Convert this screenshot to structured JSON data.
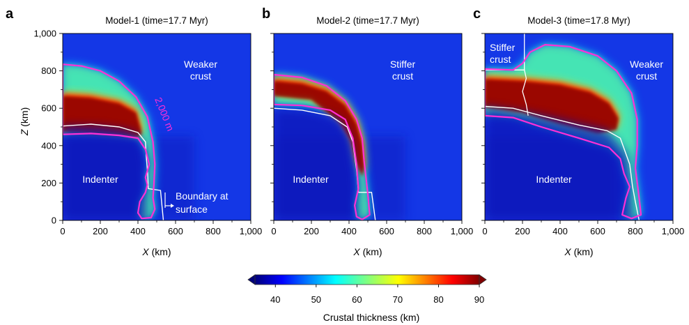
{
  "colors": {
    "background_field": "#1437e6",
    "contour_2000m": "#ff2fd6",
    "boundary_line": "#ffffff"
  },
  "chart_data": [
    {
      "type": "heatmap",
      "panel": "a",
      "title": "Model-1 (time=17.7 Myr)",
      "xlabel_var": "X",
      "xlabel_unit": "(km)",
      "ylabel_var": "Z",
      "ylabel_unit": "(km)",
      "xlim": [
        0,
        1000
      ],
      "ylim": [
        0,
        1000
      ],
      "xticks": [
        "0",
        "200",
        "400",
        "600",
        "800",
        "1,000"
      ],
      "yticks": [
        "0",
        "200",
        "400",
        "600",
        "800",
        "1,000"
      ],
      "annotations": [
        "Weaker",
        "crust",
        "Indenter",
        "Boundary at",
        "surface",
        "2,000 m"
      ],
      "contour_2000m": [
        [
          0,
          835
        ],
        [
          100,
          826
        ],
        [
          200,
          800
        ],
        [
          300,
          745
        ],
        [
          390,
          660
        ],
        [
          450,
          555
        ],
        [
          480,
          420
        ],
        [
          490,
          300
        ],
        [
          485,
          190
        ],
        [
          480,
          120
        ],
        [
          490,
          60
        ],
        [
          470,
          15
        ],
        [
          420,
          10
        ],
        [
          400,
          40
        ],
        [
          410,
          100
        ],
        [
          440,
          150
        ],
        [
          450,
          190
        ],
        [
          440,
          230
        ],
        [
          460,
          300
        ],
        [
          440,
          380
        ],
        [
          400,
          440
        ],
        [
          300,
          455
        ],
        [
          150,
          465
        ],
        [
          0,
          460
        ]
      ],
      "contour_label_pos": [
        [
          545,
          628
        ]
      ],
      "boundary_line": [
        [
          0,
          505
        ],
        [
          150,
          515
        ],
        [
          300,
          500
        ],
        [
          400,
          470
        ],
        [
          440,
          420
        ],
        [
          445,
          330
        ],
        [
          452,
          250
        ],
        [
          455,
          170
        ],
        [
          520,
          160
        ],
        [
          535,
          0
        ]
      ],
      "indenter_top": [
        [
          0,
          505
        ],
        [
          200,
          500
        ],
        [
          350,
          480
        ],
        [
          420,
          440
        ],
        [
          440,
          330
        ],
        [
          445,
          0
        ]
      ],
      "hot_core": [
        [
          0,
          680
        ],
        [
          150,
          670
        ],
        [
          300,
          640
        ],
        [
          390,
          590
        ],
        [
          420,
          480
        ],
        [
          400,
          460
        ],
        [
          300,
          470
        ],
        [
          150,
          480
        ],
        [
          0,
          490
        ]
      ]
    },
    {
      "type": "heatmap",
      "panel": "b",
      "title": "Model-2 (time=17.7 Myr)",
      "xlabel_var": "X",
      "xlabel_unit": "(km)",
      "xlim": [
        0,
        1000
      ],
      "ylim": [
        0,
        1000
      ],
      "xticks": [
        "0",
        "200",
        "400",
        "600",
        "800",
        "1,000"
      ],
      "annotations": [
        "Stiffer",
        "crust",
        "Indenter"
      ],
      "contour_2000m": [
        [
          0,
          780
        ],
        [
          150,
          765
        ],
        [
          280,
          720
        ],
        [
          380,
          640
        ],
        [
          440,
          540
        ],
        [
          470,
          440
        ],
        [
          480,
          320
        ],
        [
          500,
          140
        ],
        [
          510,
          30
        ],
        [
          470,
          5
        ],
        [
          440,
          20
        ],
        [
          430,
          80
        ],
        [
          450,
          170
        ],
        [
          440,
          300
        ],
        [
          420,
          440
        ],
        [
          380,
          540
        ],
        [
          300,
          590
        ],
        [
          150,
          615
        ],
        [
          0,
          620
        ]
      ],
      "boundary_line": [
        [
          0,
          600
        ],
        [
          150,
          590
        ],
        [
          300,
          560
        ],
        [
          390,
          500
        ],
        [
          420,
          420
        ],
        [
          440,
          270
        ],
        [
          450,
          150
        ],
        [
          520,
          150
        ],
        [
          540,
          0
        ]
      ],
      "indenter_top": [
        [
          0,
          600
        ],
        [
          200,
          590
        ],
        [
          350,
          540
        ],
        [
          410,
          440
        ],
        [
          440,
          200
        ],
        [
          450,
          0
        ]
      ],
      "hot_core": [
        [
          0,
          760
        ],
        [
          150,
          745
        ],
        [
          280,
          705
        ],
        [
          380,
          630
        ],
        [
          440,
          530
        ],
        [
          470,
          420
        ],
        [
          480,
          300
        ],
        [
          470,
          250
        ],
        [
          440,
          320
        ],
        [
          410,
          440
        ],
        [
          350,
          540
        ],
        [
          200,
          660
        ],
        [
          0,
          680
        ]
      ]
    },
    {
      "type": "heatmap",
      "panel": "c",
      "title": "Model-3 (time=17.8 Myr)",
      "xlabel_var": "X",
      "xlabel_unit": "(km)",
      "xlim": [
        0,
        1000
      ],
      "ylim": [
        0,
        1000
      ],
      "xticks": [
        "0",
        "200",
        "400",
        "600",
        "800",
        "1,000"
      ],
      "annotations": [
        "Stiffer",
        "crust",
        "Weaker",
        "crust",
        "Indenter"
      ],
      "contour_2000m": [
        [
          0,
          810
        ],
        [
          150,
          805
        ],
        [
          200,
          840
        ],
        [
          240,
          900
        ],
        [
          320,
          940
        ],
        [
          450,
          930
        ],
        [
          600,
          880
        ],
        [
          700,
          800
        ],
        [
          780,
          680
        ],
        [
          810,
          540
        ],
        [
          810,
          400
        ],
        [
          800,
          280
        ],
        [
          820,
          120
        ],
        [
          830,
          30
        ],
        [
          780,
          10
        ],
        [
          730,
          30
        ],
        [
          750,
          120
        ],
        [
          770,
          180
        ],
        [
          740,
          250
        ],
        [
          720,
          330
        ],
        [
          660,
          390
        ],
        [
          500,
          440
        ],
        [
          300,
          500
        ],
        [
          150,
          550
        ],
        [
          0,
          560
        ]
      ],
      "boundary_line": [
        [
          0,
          610
        ],
        [
          150,
          600
        ],
        [
          300,
          560
        ],
        [
          500,
          510
        ],
        [
          650,
          480
        ],
        [
          720,
          440
        ],
        [
          770,
          300
        ],
        [
          785,
          180
        ],
        [
          800,
          100
        ],
        [
          820,
          0
        ]
      ],
      "stiff_boundary": [
        [
          0,
          805
        ],
        [
          210,
          805
        ],
        [
          220,
          760
        ],
        [
          200,
          690
        ],
        [
          220,
          620
        ],
        [
          230,
          560
        ]
      ],
      "stiff_divider": [
        [
          210,
          1000
        ],
        [
          210,
          805
        ]
      ],
      "indenter_top": [
        [
          0,
          610
        ],
        [
          300,
          560
        ],
        [
          650,
          480
        ],
        [
          760,
          350
        ],
        [
          790,
          0
        ]
      ],
      "hot_core": [
        [
          0,
          770
        ],
        [
          200,
          760
        ],
        [
          400,
          740
        ],
        [
          560,
          700
        ],
        [
          660,
          640
        ],
        [
          710,
          560
        ],
        [
          700,
          500
        ],
        [
          600,
          480
        ],
        [
          400,
          530
        ],
        [
          200,
          590
        ],
        [
          0,
          620
        ]
      ]
    }
  ],
  "colorbar": {
    "label": "Crustal thickness (km)",
    "min": 35,
    "max": 90,
    "ticks": [
      "40",
      "50",
      "60",
      "70",
      "80",
      "90"
    ],
    "tick_values": [
      40,
      50,
      60,
      70,
      80,
      90
    ]
  }
}
